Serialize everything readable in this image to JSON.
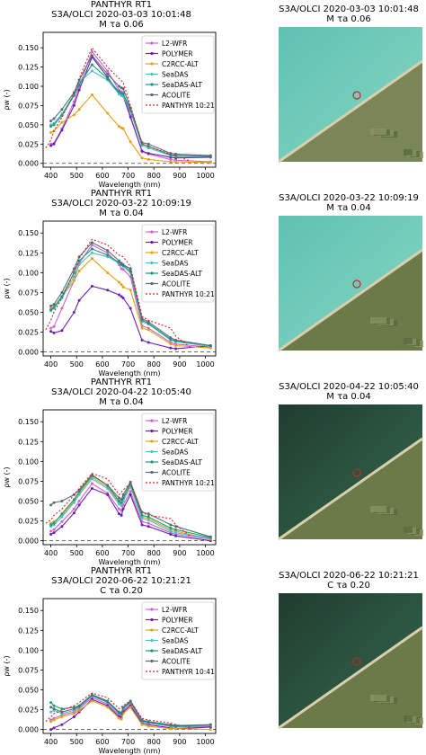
{
  "legend_labels": [
    "L2-WFR",
    "POLYMER",
    "C2RCC-ALT",
    "SeaDAS",
    "SeaDAS-ALT",
    "ACOLITE"
  ],
  "colors": {
    "L2-WFR": "#d062d0",
    "POLYMER": "#6a1fb0",
    "C2RCC-ALT": "#e0a21a",
    "SeaDAS": "#4cc0c8",
    "SeaDAS-ALT": "#1a9a7a",
    "ACOLITE": "#5a6a7a",
    "PANTHYR": "#e02020"
  },
  "panels": [
    {
      "title_line1": "PANTHYR RT1",
      "title_line2": "S3A/OLCI 2020-03-03 10:01:48",
      "title_line3": "M τa 0.06",
      "panthyr_label": "PANTHYR 10:21",
      "sat_line1": "S3A/OLCI 2020-03-03 10:01:48",
      "sat_line2": "M τa 0.06"
    },
    {
      "title_line1": "PANTHYR RT1",
      "title_line2": "S3A/OLCI 2020-03-22 10:09:19",
      "title_line3": "M τa 0.04",
      "panthyr_label": "PANTHYR 10:21",
      "sat_line1": "S3A/OLCI 2020-03-22 10:09:19",
      "sat_line2": "M τa 0.04"
    },
    {
      "title_line1": "PANTHYR RT1",
      "title_line2": "S3A/OLCI 2020-04-22 10:05:40",
      "title_line3": "M τa 0.04",
      "panthyr_label": "PANTHYR 10:21",
      "sat_line1": "S3A/OLCI 2020-04-22 10:05:40",
      "sat_line2": "M τa 0.04"
    },
    {
      "title_line1": "PANTHYR RT1",
      "title_line2": "S3A/OLCI 2020-06-22 10:21:21",
      "title_line3": "C τa 0.20",
      "panthyr_label": "PANTHYR 10:41",
      "sat_line1": "S3A/OLCI 2020-06-22 10:21:21",
      "sat_line2": "C τa 0.20"
    }
  ],
  "chart_data": [
    {
      "type": "line",
      "xlabel": "Wavelength (nm)",
      "ylabel": "ρw (-)",
      "xlim": [
        370,
        1040
      ],
      "ylim": [
        -0.005,
        0.17
      ],
      "xticks": [
        400,
        500,
        600,
        700,
        800,
        900,
        1000
      ],
      "yticks": [
        0.0,
        0.025,
        0.05,
        0.075,
        0.1,
        0.125,
        0.15
      ],
      "yticklabels": [
        "0.000",
        "0.025",
        "0.050",
        "0.075",
        "0.100",
        "0.125",
        "0.150"
      ],
      "x": [
        400,
        412,
        443,
        490,
        510,
        560,
        620,
        665,
        674,
        681,
        709,
        754,
        779,
        865,
        885,
        1020
      ],
      "series": [
        {
          "name": "L2-WFR",
          "values": [
            0.025,
            0.026,
            0.045,
            0.08,
            0.1,
            0.145,
            0.12,
            0.095,
            0.093,
            0.092,
            0.062,
            0.015,
            0.012,
            0.005,
            0.004,
            0.002
          ]
        },
        {
          "name": "POLYMER",
          "values": [
            0.023,
            0.025,
            0.043,
            0.075,
            0.095,
            0.138,
            0.112,
            0.09,
            0.088,
            0.087,
            0.06,
            0.016,
            0.013,
            0.008,
            0.007,
            0.008
          ]
        },
        {
          "name": "C2RCC-ALT",
          "values": [
            0.04,
            0.042,
            0.053,
            0.063,
            0.07,
            0.089,
            0.065,
            0.048,
            0.046,
            0.045,
            0.028,
            0.007,
            0.005,
            0.002,
            0.002,
            0.001
          ]
        },
        {
          "name": "SeaDAS",
          "values": [
            0.05,
            0.052,
            0.064,
            0.09,
            0.105,
            0.12,
            0.108,
            0.09,
            0.088,
            0.087,
            0.068,
            0.023,
            0.02,
            0.01,
            0.009,
            0.009
          ]
        },
        {
          "name": "SeaDAS-ALT",
          "values": [
            0.048,
            0.05,
            0.062,
            0.088,
            0.102,
            0.128,
            0.11,
            0.093,
            0.091,
            0.09,
            0.07,
            0.025,
            0.022,
            0.011,
            0.01,
            0.009
          ]
        },
        {
          "name": "ACOLITE",
          "values": [
            0.055,
            0.058,
            0.07,
            0.092,
            0.108,
            0.14,
            0.116,
            0.1,
            0.098,
            0.097,
            0.072,
            0.027,
            0.025,
            0.013,
            0.012,
            0.01
          ]
        },
        {
          "name": "PANTHYR 10:21",
          "x": [
            380,
            400,
            412,
            443,
            490,
            510,
            560,
            620,
            665,
            681,
            709,
            754,
            779,
            865,
            885,
            940
          ],
          "values": [
            0.02,
            0.03,
            0.042,
            0.06,
            0.09,
            0.11,
            0.15,
            0.125,
            0.11,
            0.105,
            0.075,
            0.025,
            0.022,
            0.012,
            0.01,
            0.003
          ]
        }
      ]
    },
    {
      "type": "line",
      "xlabel": "Wavelength (nm)",
      "ylabel": "ρw (-)",
      "xlim": [
        370,
        1040
      ],
      "ylim": [
        -0.005,
        0.165
      ],
      "xticks": [
        400,
        500,
        600,
        700,
        800,
        900,
        1000
      ],
      "yticks": [
        0.0,
        0.025,
        0.05,
        0.075,
        0.1,
        0.125,
        0.15
      ],
      "yticklabels": [
        "0.000",
        "0.025",
        "0.050",
        "0.075",
        "0.100",
        "0.125",
        "0.150"
      ],
      "x": [
        400,
        412,
        443,
        490,
        510,
        560,
        620,
        665,
        674,
        681,
        709,
        754,
        779,
        865,
        885,
        1020
      ],
      "series": [
        {
          "name": "L2-WFR",
          "values": [
            0.03,
            0.032,
            0.055,
            0.09,
            0.112,
            0.135,
            0.125,
            0.11,
            0.105,
            0.104,
            0.095,
            0.033,
            0.03,
            0.012,
            0.01,
            0.006
          ]
        },
        {
          "name": "POLYMER",
          "values": [
            0.026,
            0.024,
            0.027,
            0.05,
            0.065,
            0.083,
            0.078,
            0.072,
            0.07,
            0.068,
            0.055,
            0.015,
            0.012,
            0.005,
            0.004,
            0.008
          ]
        },
        {
          "name": "C2RCC-ALT",
          "values": [
            0.055,
            0.057,
            0.07,
            0.09,
            0.102,
            0.118,
            0.1,
            0.088,
            0.085,
            0.082,
            0.078,
            0.03,
            0.028,
            0.01,
            0.008,
            0.005
          ]
        },
        {
          "name": "SeaDAS",
          "values": [
            0.052,
            0.055,
            0.068,
            0.095,
            0.11,
            0.125,
            0.12,
            0.112,
            0.11,
            0.108,
            0.1,
            0.038,
            0.035,
            0.015,
            0.013,
            0.007
          ]
        },
        {
          "name": "SeaDAS-ALT",
          "values": [
            0.053,
            0.056,
            0.07,
            0.1,
            0.115,
            0.13,
            0.122,
            0.113,
            0.11,
            0.109,
            0.102,
            0.04,
            0.036,
            0.016,
            0.014,
            0.008
          ]
        },
        {
          "name": "ACOLITE",
          "values": [
            0.058,
            0.06,
            0.075,
            0.105,
            0.12,
            0.138,
            0.128,
            0.115,
            0.112,
            0.11,
            0.105,
            0.042,
            0.038,
            0.018,
            0.015,
            0.008
          ]
        },
        {
          "name": "PANTHYR 10:21",
          "x": [
            380,
            400,
            412,
            443,
            490,
            510,
            560,
            620,
            665,
            681,
            709,
            754,
            779,
            865,
            885,
            940
          ],
          "values": [
            0.028,
            0.04,
            0.05,
            0.068,
            0.1,
            0.118,
            0.142,
            0.135,
            0.122,
            0.12,
            0.108,
            0.045,
            0.04,
            0.03,
            0.02,
            0.006
          ]
        }
      ]
    },
    {
      "type": "line",
      "xlabel": "Wavelength (nm)",
      "ylabel": "ρw (-)",
      "xlim": [
        370,
        1040
      ],
      "ylim": [
        -0.005,
        0.165
      ],
      "xticks": [
        400,
        500,
        600,
        700,
        800,
        900,
        1000
      ],
      "yticks": [
        0.0,
        0.025,
        0.05,
        0.075,
        0.1,
        0.125,
        0.15
      ],
      "yticklabels": [
        "0.000",
        "0.025",
        "0.050",
        "0.075",
        "0.100",
        "0.125",
        "0.150"
      ],
      "x": [
        400,
        412,
        443,
        490,
        510,
        560,
        620,
        665,
        674,
        681,
        709,
        754,
        779,
        865,
        885,
        1020
      ],
      "series": [
        {
          "name": "L2-WFR",
          "values": [
            0.012,
            0.014,
            0.024,
            0.04,
            0.05,
            0.072,
            0.06,
            0.04,
            0.038,
            0.045,
            0.062,
            0.024,
            0.022,
            0.01,
            0.008,
            0.002
          ]
        },
        {
          "name": "POLYMER",
          "values": [
            0.008,
            0.01,
            0.018,
            0.035,
            0.045,
            0.066,
            0.058,
            0.034,
            0.032,
            0.04,
            0.058,
            0.02,
            0.018,
            0.008,
            0.006,
            0.0
          ]
        },
        {
          "name": "C2RCC-ALT",
          "values": [
            0.022,
            0.024,
            0.032,
            0.05,
            0.06,
            0.08,
            0.068,
            0.048,
            0.046,
            0.052,
            0.07,
            0.03,
            0.028,
            0.014,
            0.012,
            0.002
          ]
        },
        {
          "name": "SeaDAS",
          "values": [
            0.018,
            0.02,
            0.03,
            0.048,
            0.058,
            0.078,
            0.066,
            0.046,
            0.044,
            0.05,
            0.068,
            0.028,
            0.026,
            0.012,
            0.01,
            0.003
          ]
        },
        {
          "name": "SeaDAS-ALT",
          "values": [
            0.02,
            0.022,
            0.034,
            0.052,
            0.062,
            0.082,
            0.07,
            0.05,
            0.048,
            0.054,
            0.072,
            0.032,
            0.03,
            0.016,
            0.014,
            0.004
          ]
        },
        {
          "name": "ACOLITE",
          "values": [
            0.045,
            0.048,
            0.05,
            0.058,
            0.064,
            0.083,
            0.07,
            0.054,
            0.052,
            0.058,
            0.074,
            0.036,
            0.034,
            0.02,
            0.018,
            0.005
          ]
        },
        {
          "name": "PANTHYR 10:21",
          "x": [
            380,
            400,
            412,
            443,
            490,
            510,
            560,
            620,
            665,
            681,
            709,
            754,
            779,
            865,
            885,
            940
          ],
          "values": [
            0.022,
            0.026,
            0.032,
            0.04,
            0.058,
            0.066,
            0.085,
            0.078,
            0.058,
            0.064,
            0.072,
            0.035,
            0.032,
            0.028,
            0.02,
            0.006
          ]
        }
      ]
    },
    {
      "type": "line",
      "xlabel": "Wavelength (nm)",
      "ylabel": "ρw (-)",
      "xlim": [
        370,
        1040
      ],
      "ylim": [
        -0.005,
        0.165
      ],
      "xticks": [
        400,
        500,
        600,
        700,
        800,
        900,
        1000
      ],
      "yticks": [
        0.0,
        0.025,
        0.05,
        0.075,
        0.1,
        0.125,
        0.15
      ],
      "yticklabels": [
        "0.000",
        "0.025",
        "0.050",
        "0.075",
        "0.100",
        "0.125",
        "0.150"
      ],
      "x": [
        400,
        412,
        443,
        490,
        510,
        560,
        620,
        665,
        674,
        681,
        709,
        754,
        779,
        865,
        885,
        1020
      ],
      "series": [
        {
          "name": "L2-WFR",
          "values": [
            0.012,
            0.014,
            0.018,
            0.022,
            0.026,
            0.04,
            0.032,
            0.018,
            0.017,
            0.024,
            0.032,
            0.01,
            0.008,
            0.004,
            0.003,
            0.004
          ]
        },
        {
          "name": "POLYMER",
          "values": [
            0.0,
            0.002,
            0.006,
            0.016,
            0.022,
            0.038,
            0.03,
            0.016,
            0.015,
            0.022,
            0.03,
            0.008,
            0.006,
            0.002,
            0.001,
            0.003
          ]
        },
        {
          "name": "C2RCC-ALT",
          "values": [
            0.01,
            0.012,
            0.016,
            0.02,
            0.024,
            0.036,
            0.028,
            0.014,
            0.013,
            0.02,
            0.028,
            0.006,
            0.004,
            0.001,
            0.001,
            0.0
          ]
        },
        {
          "name": "SeaDAS",
          "values": [
            0.022,
            0.024,
            0.02,
            0.024,
            0.028,
            0.042,
            0.034,
            0.02,
            0.019,
            0.026,
            0.034,
            0.01,
            0.008,
            0.004,
            0.003,
            0.005
          ]
        },
        {
          "name": "SeaDAS-ALT",
          "values": [
            0.034,
            0.03,
            0.026,
            0.028,
            0.03,
            0.044,
            0.036,
            0.022,
            0.021,
            0.028,
            0.036,
            0.012,
            0.01,
            0.006,
            0.005,
            0.006
          ]
        },
        {
          "name": "ACOLITE",
          "values": [
            0.028,
            0.026,
            0.022,
            0.026,
            0.029,
            0.043,
            0.035,
            0.021,
            0.02,
            0.027,
            0.035,
            0.011,
            0.009,
            0.005,
            0.004,
            0.006
          ]
        },
        {
          "name": "PANTHYR 10:41",
          "x": [
            380,
            400,
            412,
            443,
            490,
            510,
            560,
            620,
            665,
            681,
            709,
            754,
            779,
            865,
            885,
            940
          ],
          "values": [
            0.01,
            0.016,
            0.02,
            0.024,
            0.03,
            0.034,
            0.046,
            0.04,
            0.026,
            0.03,
            0.036,
            0.014,
            0.012,
            0.008,
            0.006,
            0.003
          ]
        }
      ]
    }
  ]
}
